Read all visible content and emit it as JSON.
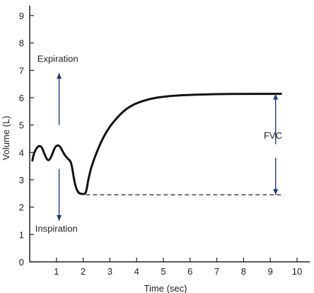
{
  "chart_data": {
    "type": "line",
    "xlabel": "Time (sec)",
    "ylabel": "Volume (L)",
    "xlim": [
      0,
      10
    ],
    "ylim": [
      0,
      9
    ],
    "x_ticks": [
      1,
      2,
      3,
      4,
      5,
      6,
      7,
      8,
      9,
      10
    ],
    "y_ticks": [
      0,
      1,
      2,
      3,
      4,
      5,
      6,
      7,
      8,
      9
    ],
    "grid": false,
    "series": [
      {
        "points": [
          [
            0.1,
            3.7
          ],
          [
            0.15,
            3.95
          ],
          [
            0.25,
            4.15
          ],
          [
            0.35,
            4.25
          ],
          [
            0.45,
            4.2
          ],
          [
            0.55,
            3.95
          ],
          [
            0.65,
            3.72
          ],
          [
            0.75,
            3.72
          ],
          [
            0.85,
            3.95
          ],
          [
            0.95,
            4.2
          ],
          [
            1.05,
            4.27
          ],
          [
            1.15,
            4.2
          ],
          [
            1.25,
            4.0
          ],
          [
            1.35,
            3.85
          ],
          [
            1.45,
            3.75
          ],
          [
            1.55,
            3.65
          ],
          [
            1.62,
            3.25
          ],
          [
            1.7,
            2.8
          ],
          [
            1.8,
            2.55
          ],
          [
            1.9,
            2.48
          ],
          [
            2.05,
            2.48
          ],
          [
            2.1,
            2.52
          ],
          [
            2.15,
            2.75
          ],
          [
            2.2,
            3.05
          ],
          [
            2.3,
            3.45
          ],
          [
            2.5,
            4.0
          ],
          [
            2.75,
            4.55
          ],
          [
            3.0,
            4.95
          ],
          [
            3.25,
            5.25
          ],
          [
            3.5,
            5.5
          ],
          [
            3.75,
            5.68
          ],
          [
            4.0,
            5.8
          ],
          [
            4.5,
            5.96
          ],
          [
            5.0,
            6.04
          ],
          [
            5.5,
            6.08
          ],
          [
            6.0,
            6.1
          ],
          [
            6.5,
            6.12
          ],
          [
            7.0,
            6.13
          ],
          [
            8.0,
            6.14
          ],
          [
            9.0,
            6.14
          ],
          [
            9.4,
            6.14
          ]
        ]
      }
    ],
    "baseline": {
      "value": 2.45,
      "x_start": 2.1,
      "x_end": 9.4
    },
    "annotations": [
      {
        "text": "Expiration",
        "x": 1.05,
        "y": 7.3
      },
      {
        "text": "Inspiration",
        "x": 1.0,
        "y": 1.1
      },
      {
        "text": "FVC",
        "x": 9.1,
        "y": 4.5
      }
    ],
    "arrows": [
      {
        "name": "expiration-arrow",
        "x": 1.1,
        "from": 5.0,
        "to": 6.9
      },
      {
        "name": "inspiration-arrow",
        "x": 1.1,
        "from": 3.4,
        "to": 1.5
      },
      {
        "name": "fvc-arrow-up",
        "x": 9.2,
        "from": 4.3,
        "to": 6.14
      },
      {
        "name": "fvc-arrow-down",
        "x": 9.2,
        "from": 3.8,
        "to": 2.45
      }
    ]
  }
}
